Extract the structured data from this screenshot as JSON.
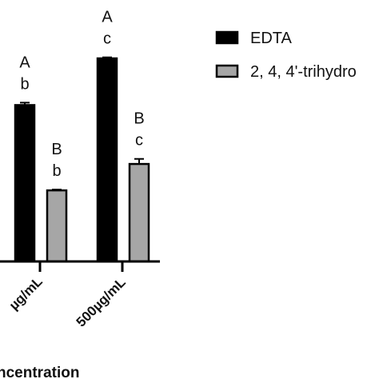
{
  "chart_data": {
    "type": "bar",
    "categories": [
      "µg/mL",
      "500µg/mL"
    ],
    "xlabel": "ncentration",
    "legend_position": "top-right",
    "series": [
      {
        "name": "EDTA",
        "color": "#000000",
        "values": [
          77,
          100
        ],
        "error": [
          1.2,
          0.5
        ],
        "labels": [
          [
            "A",
            "b"
          ],
          [
            "A",
            "c"
          ]
        ]
      },
      {
        "name": "2, 4, 4'-trihydro",
        "color": "#a6a6a6",
        "values": [
          35,
          48
        ],
        "error": [
          0.4,
          2.5
        ],
        "labels": [
          [
            "B",
            "b"
          ],
          [
            "B",
            "c"
          ]
        ]
      }
    ],
    "ylim": [
      0,
      100
    ]
  }
}
